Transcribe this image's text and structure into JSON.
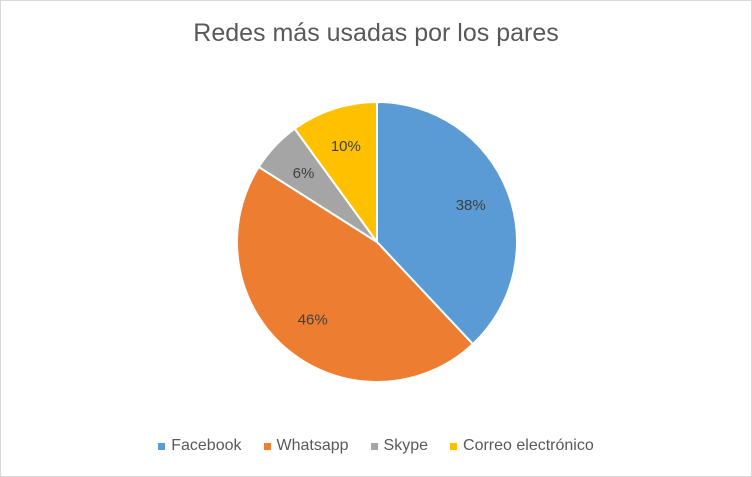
{
  "chart_data": {
    "type": "pie",
    "title": "Redes más usadas por los pares",
    "categories": [
      "Facebook",
      "Whatsapp",
      "Skype",
      "Correo electrónico"
    ],
    "values": [
      38,
      46,
      6,
      10
    ],
    "labels": [
      "38%",
      "46%",
      "6%",
      "10%"
    ],
    "colors": [
      "#5b9bd5",
      "#ed7d31",
      "#a5a5a5",
      "#ffc000"
    ],
    "legend_position": "bottom"
  }
}
